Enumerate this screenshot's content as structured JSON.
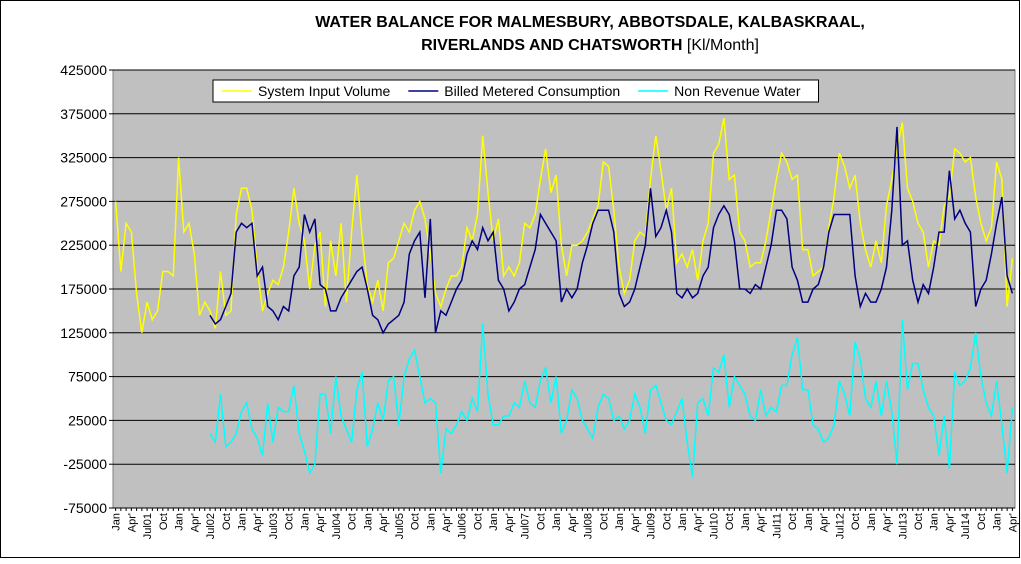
{
  "chart_data": {
    "type": "line",
    "title_lines": [
      "WATER BALANCE FOR MALMESBURY, ABBOTSDALE, KALBASKRAAL,",
      "RIVERLANDS AND CHATSWORTH"
    ],
    "title_unit": "[Kl/Month]",
    "ylim": [
      -75000,
      425000
    ],
    "yticks": [
      -75000,
      -25000,
      25000,
      75000,
      125000,
      175000,
      225000,
      275000,
      325000,
      375000,
      425000
    ],
    "grid": true,
    "background": "#c0c0c0",
    "legend": "top",
    "categories": [
      "Jan",
      null,
      null,
      "Apr'",
      null,
      null,
      "Jul01",
      null,
      null,
      "Oct",
      null,
      null,
      "Jan",
      null,
      null,
      "Apr'",
      null,
      null,
      "Jul02",
      null,
      null,
      "Oct",
      null,
      null,
      "Jan",
      null,
      null,
      "Apr'",
      null,
      null,
      "Jul03",
      null,
      null,
      "Oct",
      null,
      null,
      "Jan",
      null,
      null,
      "Apr'",
      null,
      null,
      "Jul04",
      null,
      null,
      "Oct",
      null,
      null,
      "Jan",
      null,
      null,
      "Apr'",
      null,
      null,
      "Jul05",
      null,
      null,
      "Oct",
      null,
      null,
      "Jan",
      null,
      null,
      "Apr'",
      null,
      null,
      "Jul06",
      null,
      null,
      "Oct",
      null,
      null,
      "Jan",
      null,
      null,
      "Apr'",
      null,
      null,
      "Jul07",
      null,
      null,
      "Oct",
      null,
      null,
      "Jan",
      null,
      null,
      "Apr'",
      null,
      null,
      "Jul08",
      null,
      null,
      "Oct",
      null,
      null,
      "Jan",
      null,
      null,
      "Apr'",
      null,
      null,
      "Jul09",
      null,
      null,
      "Oct",
      null,
      null,
      "Jan",
      null,
      null,
      "Apr'",
      null,
      null,
      "Jul10",
      null,
      null,
      "Oct",
      null,
      null,
      "Jan",
      null,
      null,
      "Apr'",
      null,
      null,
      "Jul11",
      null,
      null,
      "Oct",
      null,
      null,
      "Jan",
      null,
      null,
      "Apr'",
      null,
      null,
      "Jul12",
      null,
      null,
      "Oct",
      null,
      null,
      "Jan",
      null,
      null,
      "Apr'",
      null,
      null,
      "Jul13",
      null,
      null,
      "Oct",
      null,
      null,
      "Jan",
      null,
      null,
      "Apr'",
      null,
      null,
      "Jul14",
      null,
      null,
      "Oct",
      null,
      null,
      "Jan",
      null,
      null,
      "Apr'"
    ],
    "series": [
      {
        "name": "System Input Volume",
        "color": "#ffff00",
        "values": [
          275000,
          195000,
          250000,
          240000,
          170000,
          125000,
          160000,
          140000,
          150000,
          195000,
          195000,
          190000,
          325000,
          240000,
          250000,
          215000,
          145000,
          160000,
          150000,
          130000,
          195000,
          145000,
          150000,
          260000,
          290000,
          290000,
          265000,
          200000,
          150000,
          170000,
          185000,
          180000,
          200000,
          240000,
          290000,
          250000,
          230000,
          175000,
          225000,
          240000,
          155000,
          230000,
          190000,
          250000,
          160000,
          240000,
          305000,
          235000,
          180000,
          160000,
          185000,
          150000,
          205000,
          210000,
          230000,
          250000,
          240000,
          265000,
          275000,
          255000,
          215000,
          170000,
          155000,
          175000,
          190000,
          190000,
          200000,
          245000,
          230000,
          260000,
          350000,
          285000,
          230000,
          255000,
          190000,
          200000,
          190000,
          205000,
          250000,
          245000,
          260000,
          300000,
          335000,
          285000,
          305000,
          225000,
          190000,
          225000,
          225000,
          230000,
          240000,
          255000,
          270000,
          320000,
          315000,
          265000,
          200000,
          170000,
          185000,
          230000,
          240000,
          235000,
          300000,
          350000,
          310000,
          265000,
          290000,
          205000,
          215000,
          200000,
          220000,
          185000,
          230000,
          250000,
          330000,
          340000,
          370000,
          300000,
          305000,
          240000,
          230000,
          200000,
          205000,
          205000,
          230000,
          265000,
          300000,
          330000,
          320000,
          300000,
          305000,
          220000,
          220000,
          190000,
          195000,
          200000,
          245000,
          280000,
          330000,
          315000,
          290000,
          305000,
          250000,
          220000,
          200000,
          230000,
          205000,
          270000,
          300000,
          335000,
          365000,
          290000,
          275000,
          250000,
          240000,
          200000,
          230000,
          225000,
          270000,
          280000,
          335000,
          330000,
          320000,
          325000,
          280000,
          250000,
          230000,
          245000,
          320000,
          300000,
          155000,
          210000
        ]
      },
      {
        "name": "Billed Metered Consumption",
        "color": "#000080",
        "values": [
          null,
          null,
          null,
          null,
          null,
          null,
          null,
          null,
          null,
          null,
          null,
          null,
          null,
          null,
          null,
          null,
          null,
          null,
          145000,
          135000,
          140000,
          155000,
          170000,
          240000,
          250000,
          245000,
          250000,
          190000,
          200000,
          155000,
          150000,
          140000,
          155000,
          150000,
          190000,
          200000,
          260000,
          240000,
          255000,
          180000,
          175000,
          150000,
          150000,
          165000,
          175000,
          185000,
          195000,
          200000,
          175000,
          145000,
          140000,
          125000,
          135000,
          140000,
          145000,
          160000,
          215000,
          230000,
          240000,
          165000,
          255000,
          125000,
          150000,
          145000,
          160000,
          175000,
          185000,
          215000,
          230000,
          220000,
          245000,
          230000,
          240000,
          185000,
          175000,
          150000,
          160000,
          175000,
          180000,
          200000,
          220000,
          260000,
          250000,
          240000,
          230000,
          160000,
          175000,
          165000,
          175000,
          205000,
          225000,
          250000,
          265000,
          265000,
          265000,
          240000,
          170000,
          155000,
          160000,
          175000,
          200000,
          225000,
          290000,
          235000,
          245000,
          265000,
          240000,
          170000,
          165000,
          175000,
          165000,
          170000,
          190000,
          200000,
          245000,
          260000,
          270000,
          260000,
          230000,
          175000,
          175000,
          170000,
          180000,
          175000,
          200000,
          225000,
          265000,
          265000,
          255000,
          200000,
          185000,
          160000,
          160000,
          175000,
          180000,
          200000,
          240000,
          260000,
          260000,
          260000,
          260000,
          190000,
          155000,
          170000,
          160000,
          160000,
          175000,
          200000,
          265000,
          360000,
          225000,
          230000,
          185000,
          160000,
          180000,
          170000,
          200000,
          240000,
          240000,
          310000,
          255000,
          265000,
          250000,
          240000,
          155000,
          175000,
          185000,
          215000,
          250000,
          280000,
          190000,
          170000
        ]
      },
      {
        "name": "Non Revenue Water",
        "color": "#00ffff",
        "values": [
          null,
          null,
          null,
          null,
          null,
          null,
          null,
          null,
          null,
          null,
          null,
          null,
          null,
          null,
          null,
          null,
          null,
          null,
          10000,
          0,
          55000,
          -5000,
          0,
          10000,
          35000,
          45000,
          15000,
          5000,
          -15000,
          45000,
          0,
          40000,
          35000,
          35000,
          65000,
          10000,
          -10000,
          -35000,
          -25000,
          55000,
          55000,
          10000,
          75000,
          30000,
          15000,
          0,
          60000,
          80000,
          -5000,
          15000,
          45000,
          25000,
          70000,
          75000,
          20000,
          75000,
          95000,
          105000,
          75000,
          45000,
          50000,
          45000,
          -35000,
          15000,
          10000,
          20000,
          35000,
          25000,
          50000,
          35000,
          135000,
          55000,
          20000,
          20000,
          30000,
          30000,
          45000,
          40000,
          70000,
          45000,
          40000,
          70000,
          85000,
          45000,
          75000,
          10000,
          25000,
          60000,
          50000,
          25000,
          15000,
          5000,
          40000,
          55000,
          50000,
          25000,
          30000,
          15000,
          25000,
          55000,
          40000,
          10000,
          60000,
          65000,
          45000,
          25000,
          20000,
          35000,
          50000,
          0,
          -40000,
          45000,
          50000,
          30000,
          85000,
          80000,
          100000,
          40000,
          75000,
          65000,
          55000,
          30000,
          25000,
          60000,
          30000,
          40000,
          35000,
          65000,
          65000,
          100000,
          120000,
          60000,
          60000,
          20000,
          15000,
          0,
          5000,
          20000,
          70000,
          55000,
          30000,
          115000,
          95000,
          50000,
          40000,
          70000,
          30000,
          70000,
          35000,
          -25000,
          140000,
          60000,
          90000,
          90000,
          60000,
          40000,
          30000,
          -15000,
          30000,
          -30000,
          80000,
          65000,
          70000,
          85000,
          125000,
          75000,
          45000,
          30000,
          70000,
          20000,
          -35000,
          40000
        ]
      }
    ]
  }
}
